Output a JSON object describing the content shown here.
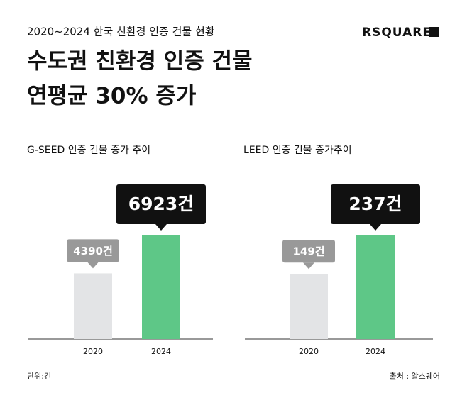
{
  "header": {
    "subtitle": "2020~2024 한국 친환경 인증 건물 현황",
    "logo": "RSQUARE",
    "title_lines": [
      "수도권 친환경 인증 건물",
      "연평균 30% 증가"
    ]
  },
  "chart_data": [
    {
      "type": "bar",
      "title": "G-SEED 인증 건물 증가 추이",
      "categories": [
        "2020",
        "2024"
      ],
      "values": [
        4390,
        6923
      ],
      "value_labels": [
        "4390건",
        "6923건"
      ],
      "colors": [
        "#e3e4e6",
        "#5ec787"
      ]
    },
    {
      "type": "bar",
      "title": "LEED 인증 건물 증가추이",
      "categories": [
        "2020",
        "2024"
      ],
      "values": [
        149,
        237
      ],
      "value_labels": [
        "149건",
        "237건"
      ],
      "colors": [
        "#e3e4e6",
        "#5ec787"
      ]
    }
  ],
  "footer": {
    "unit": "단위:건",
    "source": "출처 : 알스퀘어"
  }
}
